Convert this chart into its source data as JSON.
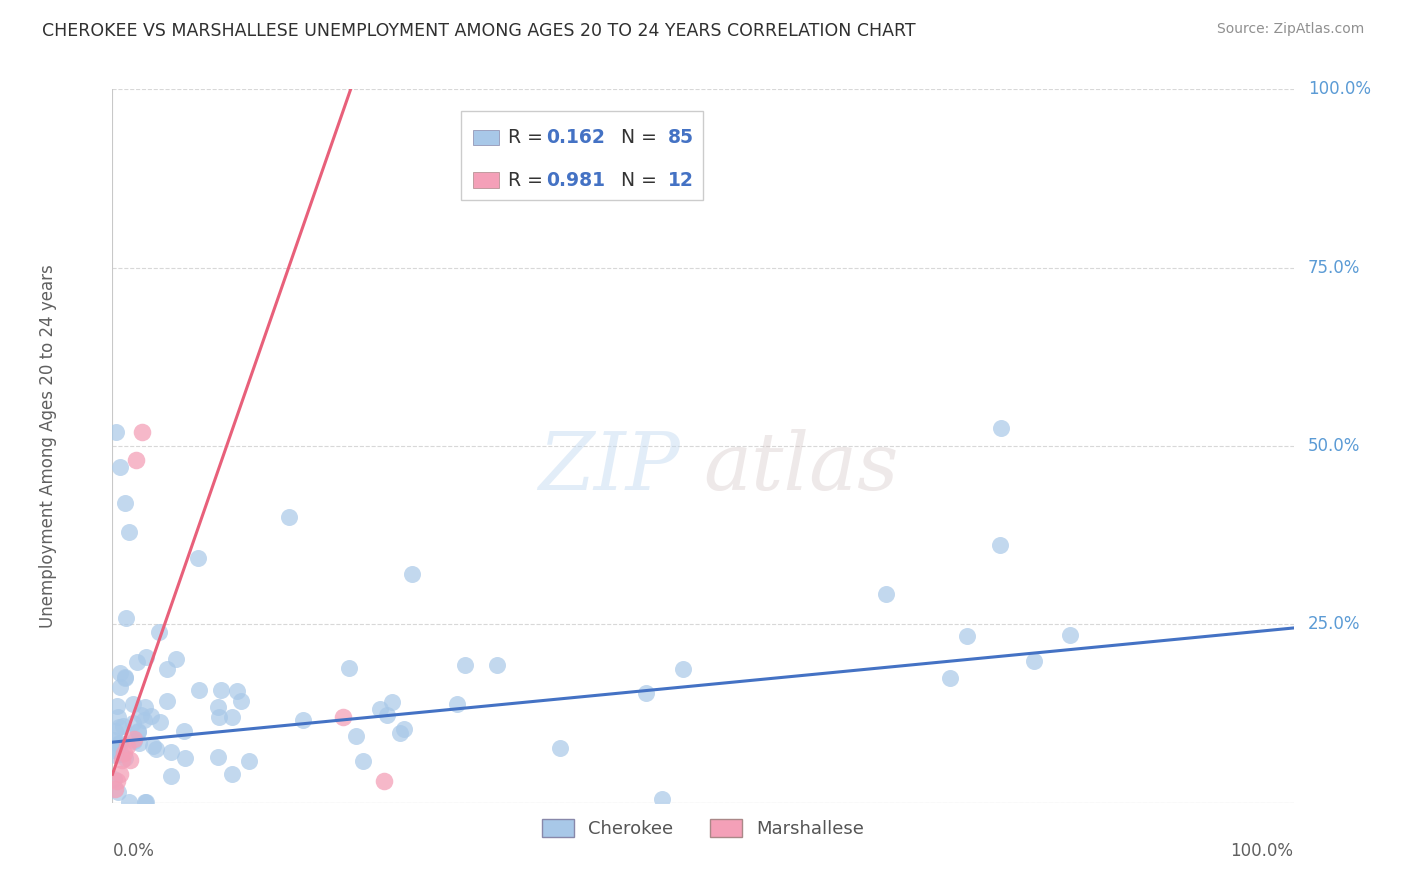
{
  "title": "CHEROKEE VS MARSHALLESE UNEMPLOYMENT AMONG AGES 20 TO 24 YEARS CORRELATION CHART",
  "source": "Source: ZipAtlas.com",
  "ylabel": "Unemployment Among Ages 20 to 24 years",
  "watermark_zip": "ZIP",
  "watermark_atlas": "atlas",
  "legend_label1": "Cherokee",
  "legend_label2": "Marshallese",
  "cherokee_R": "0.162",
  "cherokee_N": "85",
  "marshallese_R": "0.981",
  "marshallese_N": "12",
  "cherokee_color": "#a8c8e8",
  "marshallese_color": "#f4a0b8",
  "cherokee_line_color": "#4472c4",
  "marshallese_line_color": "#e8607a",
  "background_color": "#ffffff",
  "grid_color": "#c8c8c8",
  "title_color": "#303030",
  "source_color": "#909090",
  "ylabel_color": "#606060",
  "ytick_color": "#5b9bd5",
  "xtick_color": "#606060"
}
